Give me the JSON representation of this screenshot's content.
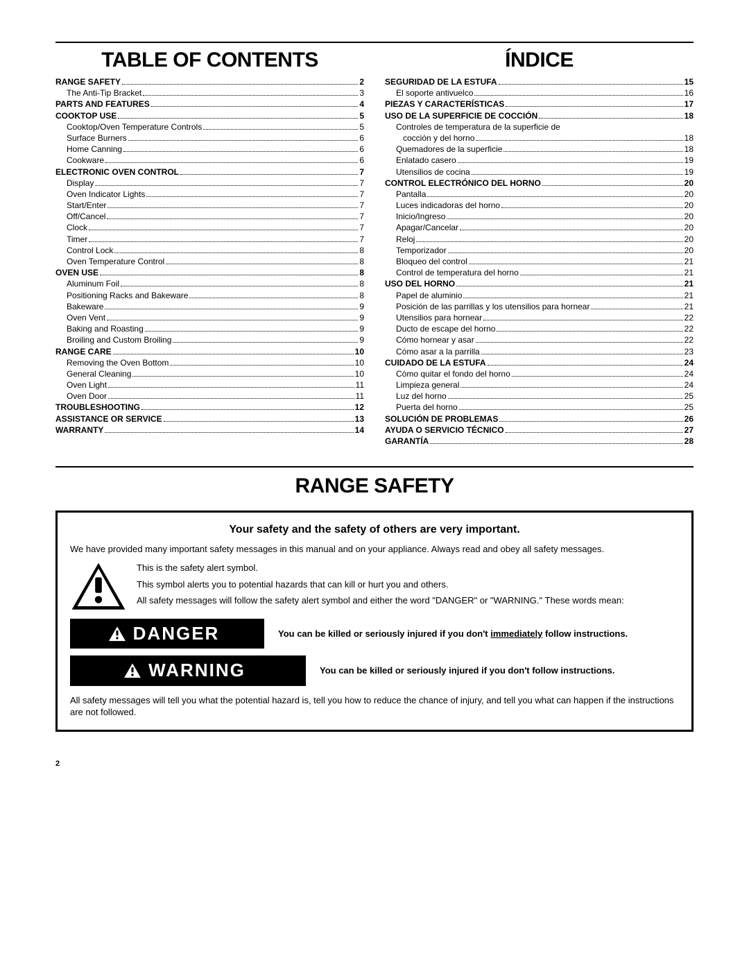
{
  "left": {
    "title": "Table of Contents",
    "items": [
      {
        "label": "RANGE SAFETY",
        "page": "2",
        "section": true
      },
      {
        "label": "The Anti-Tip Bracket",
        "page": "3"
      },
      {
        "label": "PARTS AND FEATURES",
        "page": "4",
        "section": true
      },
      {
        "label": "COOKTOP USE",
        "page": "5",
        "section": true
      },
      {
        "label": "Cooktop/Oven Temperature Controls",
        "page": "5"
      },
      {
        "label": "Surface Burners",
        "page": "6"
      },
      {
        "label": "Home Canning",
        "page": "6"
      },
      {
        "label": "Cookware",
        "page": "6"
      },
      {
        "label": "ELECTRONIC OVEN CONTROL",
        "page": "7",
        "section": true
      },
      {
        "label": "Display",
        "page": "7"
      },
      {
        "label": "Oven Indicator Lights",
        "page": "7"
      },
      {
        "label": "Start/Enter",
        "page": "7"
      },
      {
        "label": "Off/Cancel",
        "page": "7"
      },
      {
        "label": "Clock",
        "page": "7"
      },
      {
        "label": "Timer",
        "page": "7"
      },
      {
        "label": "Control Lock",
        "page": "8"
      },
      {
        "label": "Oven Temperature Control",
        "page": "8"
      },
      {
        "label": "OVEN USE",
        "page": "8",
        "section": true
      },
      {
        "label": "Aluminum Foil",
        "page": "8"
      },
      {
        "label": "Positioning Racks and Bakeware",
        "page": "8"
      },
      {
        "label": "Bakeware",
        "page": "9"
      },
      {
        "label": "Oven Vent",
        "page": "9"
      },
      {
        "label": "Baking and Roasting",
        "page": "9"
      },
      {
        "label": "Broiling and Custom Broiling",
        "page": "9"
      },
      {
        "label": "RANGE CARE",
        "page": "10",
        "section": true
      },
      {
        "label": "Removing the Oven Bottom",
        "page": "10"
      },
      {
        "label": "General Cleaning",
        "page": "10"
      },
      {
        "label": "Oven Light",
        "page": "11"
      },
      {
        "label": "Oven Door",
        "page": "11"
      },
      {
        "label": "TROUBLESHOOTING",
        "page": "12",
        "section": true
      },
      {
        "label": "ASSISTANCE OR SERVICE",
        "page": "13",
        "section": true
      },
      {
        "label": "WARRANTY",
        "page": "14",
        "section": true
      }
    ]
  },
  "right": {
    "title": "Índice",
    "items": [
      {
        "label": "SEGURIDAD DE LA ESTUFA",
        "page": "15",
        "section": true
      },
      {
        "label": "El soporte antivuelco",
        "page": "16"
      },
      {
        "label": "PIEZAS Y CARACTERÍSTICAS",
        "page": "17",
        "section": true
      },
      {
        "label": "USO DE LA SUPERFICIE DE COCCIÓN",
        "page": "18",
        "section": true
      },
      {
        "label": "Controles de temperatura de la superficie de",
        "nobreak": true
      },
      {
        "label": "cocción y del horno",
        "page": "18",
        "cont": true
      },
      {
        "label": "Quemadores de la superficie",
        "page": "18"
      },
      {
        "label": "Enlatado casero",
        "page": "19"
      },
      {
        "label": "Utensilios de cocina",
        "page": "19"
      },
      {
        "label": "CONTROL ELECTRÓNICO DEL HORNO",
        "page": "20",
        "section": true
      },
      {
        "label": "Pantalla",
        "page": "20"
      },
      {
        "label": "Luces indicadoras del horno",
        "page": "20"
      },
      {
        "label": "Inicio/Ingreso",
        "page": "20"
      },
      {
        "label": "Apagar/Cancelar",
        "page": "20"
      },
      {
        "label": "Reloj",
        "page": "20"
      },
      {
        "label": "Temporizador",
        "page": "20"
      },
      {
        "label": "Bloqueo del control",
        "page": "21"
      },
      {
        "label": "Control de temperatura del horno",
        "page": "21"
      },
      {
        "label": "USO DEL HORNO",
        "page": "21",
        "section": true
      },
      {
        "label": "Papel de aluminio",
        "page": "21"
      },
      {
        "label": "Posición de las parrillas y los utensilios para hornear",
        "page": "21"
      },
      {
        "label": "Utensilios para hornear",
        "page": "22"
      },
      {
        "label": "Ducto de escape del horno",
        "page": "22"
      },
      {
        "label": "Cómo hornear y asar",
        "page": "22"
      },
      {
        "label": "Cómo asar a la parrilla",
        "page": "23"
      },
      {
        "label": "CUIDADO DE LA ESTUFA",
        "page": "24",
        "section": true
      },
      {
        "label": "Cómo quitar el fondo del horno",
        "page": "24"
      },
      {
        "label": "Limpieza general",
        "page": "24"
      },
      {
        "label": "Luz del horno",
        "page": "25"
      },
      {
        "label": "Puerta del horno",
        "page": "25"
      },
      {
        "label": "SOLUCIÓN DE PROBLEMAS",
        "page": "26",
        "section": true
      },
      {
        "label": "AYUDA O SERVICIO TÉCNICO",
        "page": "27",
        "section": true
      },
      {
        "label": "GARANTÍA",
        "page": "28",
        "section": true
      }
    ]
  },
  "safety": {
    "heading": "Range Safety",
    "lead": "Your safety and the safety of others are very important.",
    "intro": "We have provided many important safety messages in this manual and on your appliance. Always read and obey all safety messages.",
    "alert1": "This is the safety alert symbol.",
    "alert2": "This symbol alerts you to potential hazards that can kill or hurt you and others.",
    "alert3": "All safety messages will follow the safety alert symbol and either the word \"DANGER\" or \"WARNING.\" These words mean:",
    "danger_label": "DANGER",
    "danger_text_pre": "You can be killed or seriously injured if you don't ",
    "danger_text_underline": "immediately",
    "danger_text_post": " follow instructions.",
    "warning_label": "WARNING",
    "warning_text": "You can be killed or seriously injured if you don't follow instructions.",
    "footer": "All safety messages will tell you what the potential hazard is, tell you how to reduce the chance of injury, and tell you what can happen if the instructions are not followed."
  },
  "page_number": "2"
}
